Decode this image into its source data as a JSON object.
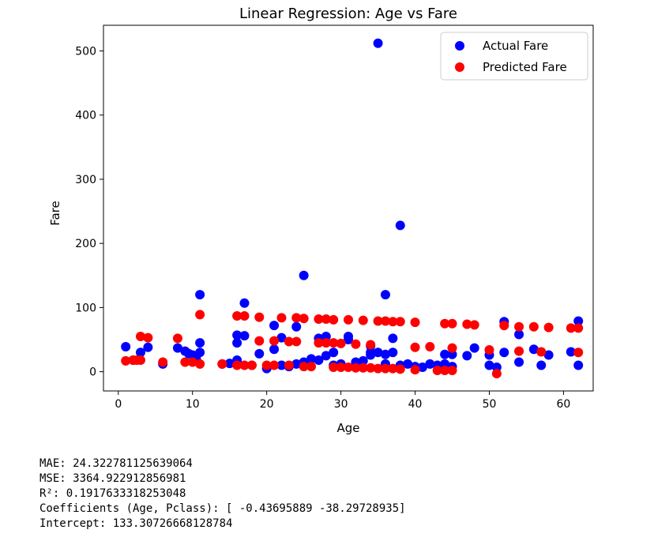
{
  "chart_data": {
    "type": "scatter",
    "title": "Linear Regression: Age vs Fare",
    "xlabel": "Age",
    "ylabel": "Fare",
    "xlim": [
      -2,
      64
    ],
    "ylim": [
      -30,
      540
    ],
    "xticks": [
      0,
      10,
      20,
      30,
      40,
      50,
      60
    ],
    "yticks": [
      0,
      100,
      200,
      300,
      400,
      500
    ],
    "grid": false,
    "legend": "top-right",
    "series": [
      {
        "name": "Actual Fare",
        "color": "#0000ff",
        "points": [
          [
            1,
            39
          ],
          [
            2,
            18
          ],
          [
            3,
            30
          ],
          [
            4,
            38
          ],
          [
            6,
            12
          ],
          [
            8,
            37
          ],
          [
            9,
            32
          ],
          [
            9.5,
            28
          ],
          [
            10,
            26
          ],
          [
            10.5,
            20
          ],
          [
            11,
            30
          ],
          [
            11,
            45
          ],
          [
            11,
            120
          ],
          [
            14,
            12
          ],
          [
            15,
            13
          ],
          [
            16,
            18
          ],
          [
            16,
            45
          ],
          [
            16,
            57
          ],
          [
            17,
            56
          ],
          [
            17,
            107
          ],
          [
            18,
            10
          ],
          [
            19,
            28
          ],
          [
            20,
            5
          ],
          [
            21,
            35
          ],
          [
            21,
            72
          ],
          [
            22,
            53
          ],
          [
            22,
            10
          ],
          [
            23,
            8
          ],
          [
            24,
            70
          ],
          [
            24,
            12
          ],
          [
            25,
            150
          ],
          [
            25,
            15
          ],
          [
            26,
            20
          ],
          [
            27,
            52
          ],
          [
            27,
            18
          ],
          [
            28,
            55
          ],
          [
            28,
            25
          ],
          [
            29,
            30
          ],
          [
            29,
            10
          ],
          [
            30,
            12
          ],
          [
            31,
            55
          ],
          [
            31,
            50
          ],
          [
            32,
            15
          ],
          [
            33,
            17
          ],
          [
            34,
            26
          ],
          [
            34,
            30
          ],
          [
            34,
            40
          ],
          [
            35,
            512
          ],
          [
            35,
            30
          ],
          [
            36,
            120
          ],
          [
            36,
            27
          ],
          [
            36,
            12
          ],
          [
            37,
            52
          ],
          [
            37,
            30
          ],
          [
            38,
            228
          ],
          [
            38,
            10
          ],
          [
            39,
            12
          ],
          [
            40,
            8
          ],
          [
            41,
            7
          ],
          [
            42,
            12
          ],
          [
            43,
            10
          ],
          [
            44,
            27
          ],
          [
            44,
            12
          ],
          [
            45,
            8
          ],
          [
            45,
            27
          ],
          [
            47,
            25
          ],
          [
            48,
            37
          ],
          [
            50,
            10
          ],
          [
            50,
            26
          ],
          [
            51,
            7
          ],
          [
            52,
            78
          ],
          [
            52,
            30
          ],
          [
            54,
            15
          ],
          [
            54,
            58
          ],
          [
            56,
            35
          ],
          [
            57,
            10
          ],
          [
            58,
            26
          ],
          [
            61,
            31
          ],
          [
            62,
            79
          ],
          [
            62,
            10
          ]
        ]
      },
      {
        "name": "Predicted Fare",
        "color": "#ff0000",
        "points": [
          [
            1,
            17
          ],
          [
            2,
            18
          ],
          [
            2.5,
            18
          ],
          [
            3,
            55
          ],
          [
            3,
            18
          ],
          [
            4,
            53
          ],
          [
            6,
            15
          ],
          [
            8,
            52
          ],
          [
            9,
            15
          ],
          [
            10,
            15
          ],
          [
            11,
            12
          ],
          [
            11,
            89
          ],
          [
            14,
            12
          ],
          [
            16,
            87
          ],
          [
            16,
            10
          ],
          [
            17,
            87
          ],
          [
            17,
            10
          ],
          [
            18,
            10
          ],
          [
            19,
            85
          ],
          [
            19,
            48
          ],
          [
            20,
            10
          ],
          [
            21,
            48
          ],
          [
            21,
            10
          ],
          [
            22,
            84
          ],
          [
            23,
            47
          ],
          [
            23,
            10
          ],
          [
            24,
            84
          ],
          [
            24,
            47
          ],
          [
            25,
            83
          ],
          [
            25,
            8
          ],
          [
            26,
            8
          ],
          [
            27,
            82
          ],
          [
            27,
            45
          ],
          [
            28,
            82
          ],
          [
            28,
            45
          ],
          [
            29,
            81
          ],
          [
            29,
            45
          ],
          [
            29,
            7
          ],
          [
            30,
            44
          ],
          [
            30,
            7
          ],
          [
            31,
            81
          ],
          [
            31,
            7
          ],
          [
            32,
            43
          ],
          [
            32,
            6
          ],
          [
            33,
            80
          ],
          [
            33,
            6
          ],
          [
            34,
            42
          ],
          [
            34,
            6
          ],
          [
            35,
            79
          ],
          [
            35,
            5
          ],
          [
            36,
            79
          ],
          [
            36,
            5
          ],
          [
            37,
            78
          ],
          [
            37,
            5
          ],
          [
            38,
            78
          ],
          [
            38,
            4
          ],
          [
            40,
            77
          ],
          [
            40,
            38
          ],
          [
            40,
            3
          ],
          [
            42,
            39
          ],
          [
            43,
            2
          ],
          [
            44,
            75
          ],
          [
            44,
            2
          ],
          [
            45,
            75
          ],
          [
            45,
            37
          ],
          [
            45,
            2
          ],
          [
            47,
            74
          ],
          [
            48,
            73
          ],
          [
            50,
            34
          ],
          [
            51,
            -3
          ],
          [
            52,
            72
          ],
          [
            54,
            70
          ],
          [
            54,
            32
          ],
          [
            56,
            70
          ],
          [
            57,
            31
          ],
          [
            58,
            69
          ],
          [
            61,
            68
          ],
          [
            62,
            68
          ],
          [
            62,
            30
          ]
        ]
      }
    ]
  },
  "output_lines": [
    "MAE: 24.322781125639064",
    "MSE: 3364.922912856981",
    "R²: 0.1917633318253048",
    "Coefficients (Age, Pclass): [ -0.43695889 -38.29728935]",
    "Intercept: 133.30726668128784"
  ]
}
